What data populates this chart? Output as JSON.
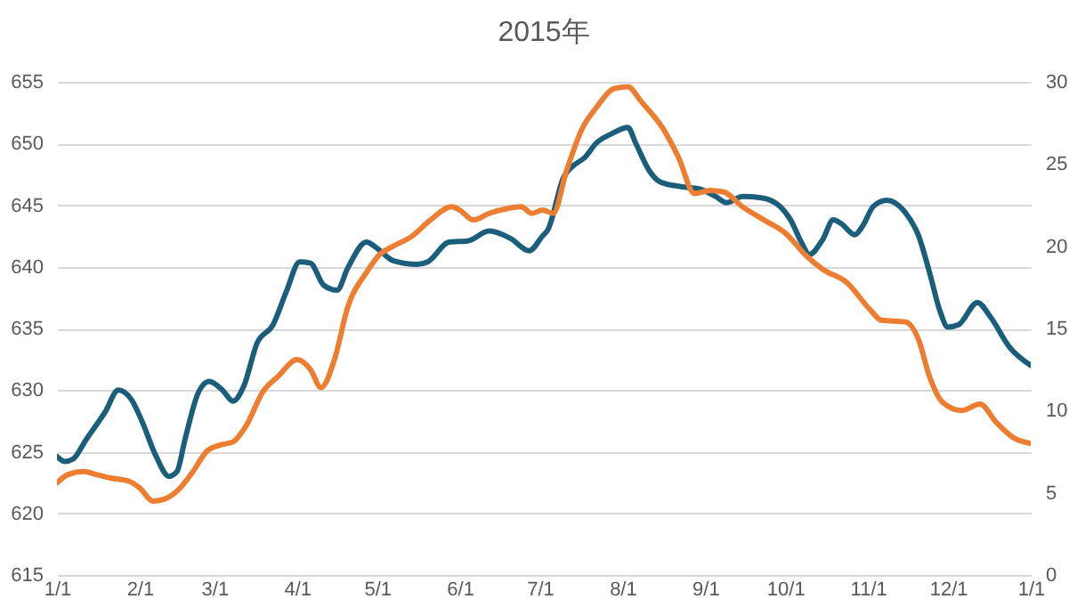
{
  "chart_data": {
    "type": "line",
    "title": "2015年",
    "grid": "y",
    "xlim": [
      "2015-01-01",
      "2016-01-01"
    ],
    "xticks": [
      {
        "value": "2015-01-01",
        "label": "1/1"
      },
      {
        "value": "2015-02-01",
        "label": "2/1"
      },
      {
        "value": "2015-03-01",
        "label": "3/1"
      },
      {
        "value": "2015-04-01",
        "label": "4/1"
      },
      {
        "value": "2015-05-01",
        "label": "5/1"
      },
      {
        "value": "2015-06-01",
        "label": "6/1"
      },
      {
        "value": "2015-07-01",
        "label": "7/1"
      },
      {
        "value": "2015-08-01",
        "label": "8/1"
      },
      {
        "value": "2015-09-01",
        "label": "9/1"
      },
      {
        "value": "2015-10-01",
        "label": "10/1"
      },
      {
        "value": "2015-11-01",
        "label": "11/1"
      },
      {
        "value": "2015-12-01",
        "label": "12/1"
      },
      {
        "value": "2016-01-01",
        "label": "1/1"
      }
    ],
    "ylim": [
      615,
      655
    ],
    "yticks": [
      615,
      620,
      625,
      630,
      635,
      640,
      645,
      650,
      655
    ],
    "y2lim": [
      0,
      30
    ],
    "y2ticks": [
      0,
      5,
      10,
      15,
      20,
      25,
      30
    ],
    "series": [
      {
        "color": "#1b5e7b",
        "x": [
          "2015-01-01",
          "2015-01-04",
          "2015-01-07",
          "2015-01-12",
          "2015-01-19",
          "2015-01-24",
          "2015-01-29",
          "2015-02-02",
          "2015-02-07",
          "2015-02-12",
          "2015-02-15",
          "2015-02-18",
          "2015-02-23",
          "2015-02-27",
          "2015-03-04",
          "2015-03-08",
          "2015-03-12",
          "2015-03-17",
          "2015-03-23",
          "2015-03-28",
          "2015-04-02",
          "2015-04-06",
          "2015-04-11",
          "2015-04-16",
          "2015-04-20",
          "2015-04-27",
          "2015-05-01",
          "2015-05-07",
          "2015-05-16",
          "2015-05-20",
          "2015-05-28",
          "2015-06-04",
          "2015-06-12",
          "2015-06-20",
          "2015-06-27",
          "2015-07-02",
          "2015-07-04",
          "2015-07-10",
          "2015-07-13",
          "2015-07-18",
          "2015-07-22",
          "2015-07-28",
          "2015-08-03",
          "2015-08-06",
          "2015-08-11",
          "2015-08-15",
          "2015-08-23",
          "2015-08-30",
          "2015-09-05",
          "2015-09-09",
          "2015-09-15",
          "2015-09-22",
          "2015-09-29",
          "2015-10-03",
          "2015-10-07",
          "2015-10-10",
          "2015-10-15",
          "2015-10-19",
          "2015-10-22",
          "2015-10-27",
          "2015-10-30",
          "2015-11-03",
          "2015-11-08",
          "2015-11-15",
          "2015-11-20",
          "2015-11-24",
          "2015-11-28",
          "2015-12-01",
          "2015-12-05",
          "2015-12-12",
          "2015-12-17",
          "2015-12-24",
          "2016-01-01"
        ],
        "values": [
          624.6,
          624.2,
          624.4,
          626.0,
          628.2,
          630.0,
          629.2,
          627.4,
          624.7,
          623.0,
          623.4,
          626.0,
          629.8,
          630.7,
          630.0,
          629.1,
          630.3,
          633.8,
          635.3,
          638.0,
          640.4,
          640.3,
          638.5,
          638.1,
          639.9,
          642.0,
          641.5,
          640.5,
          640.2,
          640.4,
          642.0,
          642.1,
          642.9,
          642.3,
          641.3,
          642.5,
          643.0,
          647.3,
          648.1,
          648.9,
          650.0,
          650.8,
          651.3,
          650.0,
          647.8,
          646.9,
          646.5,
          646.3,
          645.7,
          645.2,
          645.7,
          645.6,
          644.9,
          643.8,
          642.0,
          641.0,
          642.2,
          643.8,
          643.5,
          642.6,
          643.3,
          644.9,
          645.4,
          644.4,
          642.5,
          639.6,
          636.4,
          635.1,
          635.3,
          637.1,
          635.9,
          633.5,
          632.0
        ]
      },
      {
        "color": "#ed7d31",
        "axis": "y2",
        "x": [
          "2015-01-01",
          "2015-01-05",
          "2015-01-11",
          "2015-01-16",
          "2015-01-21",
          "2015-01-28",
          "2015-02-01",
          "2015-02-06",
          "2015-02-10",
          "2015-02-15",
          "2015-02-21",
          "2015-02-26",
          "2015-03-03",
          "2015-03-08",
          "2015-03-13",
          "2015-03-19",
          "2015-03-25",
          "2015-04-01",
          "2015-04-06",
          "2015-04-10",
          "2015-04-15",
          "2015-04-20",
          "2015-04-27",
          "2015-05-02",
          "2015-05-07",
          "2015-05-14",
          "2015-05-21",
          "2015-05-29",
          "2015-06-01",
          "2015-06-06",
          "2015-06-12",
          "2015-06-19",
          "2015-06-24",
          "2015-06-28",
          "2015-07-02",
          "2015-07-06",
          "2015-07-11",
          "2015-07-17",
          "2015-07-22",
          "2015-07-29",
          "2015-08-03",
          "2015-08-08",
          "2015-08-16",
          "2015-08-22",
          "2015-08-28",
          "2015-09-03",
          "2015-09-08",
          "2015-09-15",
          "2015-09-23",
          "2015-10-01",
          "2015-10-09",
          "2015-10-15",
          "2015-10-24",
          "2015-11-02",
          "2015-11-06",
          "2015-11-15",
          "2015-11-20",
          "2015-11-24",
          "2015-11-29",
          "2015-12-06",
          "2015-12-13",
          "2015-12-19",
          "2015-12-26",
          "2016-01-01"
        ],
        "values": [
          5.6,
          6.1,
          6.3,
          6.1,
          5.9,
          5.7,
          5.3,
          4.5,
          4.6,
          5.1,
          6.3,
          7.5,
          7.9,
          8.1,
          9.1,
          11.1,
          12.1,
          13.1,
          12.5,
          11.4,
          13.1,
          16.3,
          18.4,
          19.5,
          20.0,
          20.6,
          21.6,
          22.4,
          22.2,
          21.6,
          22.0,
          22.3,
          22.4,
          22.0,
          22.2,
          22.0,
          24.6,
          27.2,
          28.4,
          29.6,
          29.7,
          28.8,
          27.2,
          25.4,
          23.2,
          23.4,
          23.3,
          22.4,
          21.6,
          20.8,
          19.4,
          18.6,
          17.8,
          16.1,
          15.5,
          15.4,
          14.3,
          12.1,
          10.5,
          10.0,
          10.4,
          9.3,
          8.3,
          8.0
        ]
      }
    ]
  }
}
